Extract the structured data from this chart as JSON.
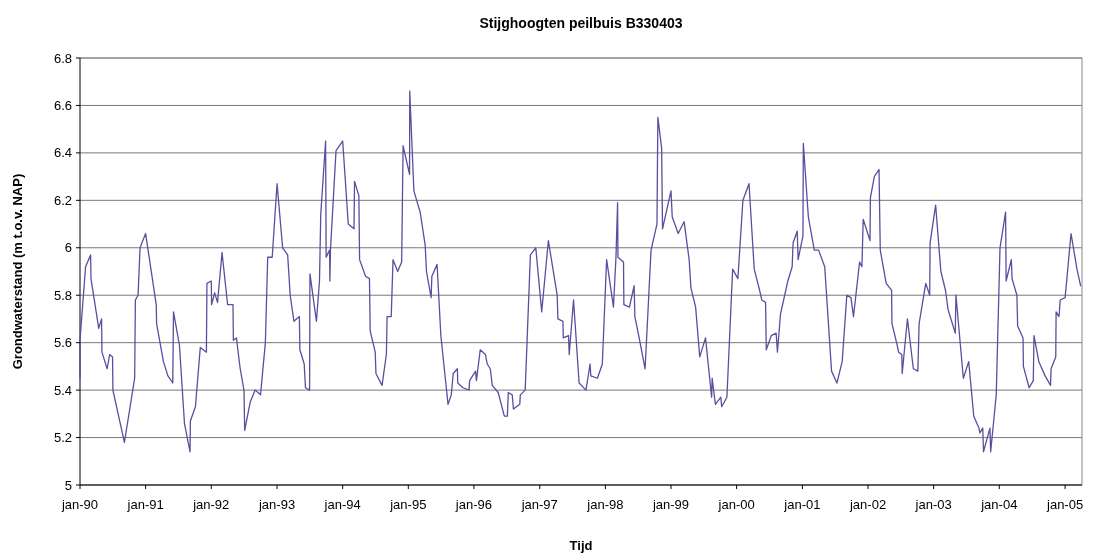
{
  "chart_data": {
    "type": "line",
    "title": "Stijghoogten peilbuis B330403",
    "xlabel": "Tijd",
    "ylabel": "Grondwaterstand (m t.o.v. NAP)",
    "xlim": [
      "1990-01-01",
      "2005-04-05"
    ],
    "ylim": [
      5,
      6.8
    ],
    "xticks": [
      {
        "value": "1990-01-01",
        "label": "jan-90"
      },
      {
        "value": "1991-01-01",
        "label": "jan-91"
      },
      {
        "value": "1992-01-01",
        "label": "jan-92"
      },
      {
        "value": "1993-01-01",
        "label": "jan-93"
      },
      {
        "value": "1994-01-01",
        "label": "jan-94"
      },
      {
        "value": "1995-01-01",
        "label": "jan-95"
      },
      {
        "value": "1996-01-01",
        "label": "jan-96"
      },
      {
        "value": "1997-01-01",
        "label": "jan-97"
      },
      {
        "value": "1998-01-01",
        "label": "jan-98"
      },
      {
        "value": "1999-01-01",
        "label": "jan-99"
      },
      {
        "value": "2000-01-01",
        "label": "jan-00"
      },
      {
        "value": "2001-01-01",
        "label": "jan-01"
      },
      {
        "value": "2002-01-01",
        "label": "jan-02"
      },
      {
        "value": "2003-01-01",
        "label": "jan-03"
      },
      {
        "value": "2004-01-01",
        "label": "jan-04"
      },
      {
        "value": "2005-01-01",
        "label": "jan-05"
      }
    ],
    "yticks": [
      5,
      5.2,
      5.4,
      5.6,
      5.8,
      6,
      6.2,
      6.4,
      6.6,
      6.8
    ],
    "grid": "y",
    "marker": "none",
    "line_style": "solid",
    "x": [
      "1990-01-01",
      "1990-01-01",
      "1990-02-01",
      "1990-03-01",
      "1990-03-03",
      "1990-04-01",
      "1990-04-15",
      "1990-05-01",
      "1990-05-03",
      "1990-06-01",
      "1990-06-15",
      "1990-07-01",
      "1990-07-03",
      "1990-09-05",
      "1990-11-01",
      "1990-11-05",
      "1990-11-20",
      "1990-12-01",
      "1991-01-01",
      "1991-03-01",
      "1991-03-03",
      "1991-04-10",
      "1991-05-05",
      "1991-06-01",
      "1991-06-05",
      "1991-07-08",
      "1991-08-05",
      "1991-09-05",
      "1991-09-07",
      "1991-10-05",
      "1991-11-01",
      "1991-12-05",
      "1991-12-08",
      "1992-01-01",
      "1992-01-03",
      "1992-01-20",
      "1992-02-05",
      "1992-03-01",
      "1992-04-01",
      "1992-05-01",
      "1992-05-03",
      "1992-05-20",
      "1992-06-10",
      "1992-07-01",
      "1992-07-05",
      "1992-08-05",
      "1992-09-01",
      "1992-10-01",
      "1992-10-28",
      "1992-11-10",
      "1992-12-05",
      "1993-01-01",
      "1993-02-01",
      "1993-03-01",
      "1993-03-15",
      "1993-04-05",
      "1993-05-05",
      "1993-05-08",
      "1993-06-01",
      "1993-06-08",
      "1993-07-01",
      "1993-07-03",
      "1993-08-08",
      "1993-08-25",
      "1993-09-01",
      "1993-09-28",
      "1993-10-01",
      "1993-10-20",
      "1993-10-22",
      "1993-10-25",
      "1993-11-25",
      "1994-01-01",
      "1994-02-01",
      "1994-03-05",
      "1994-03-08",
      "1994-04-01",
      "1994-04-05",
      "1994-05-08",
      "1994-05-30",
      "1994-06-03",
      "1994-07-01",
      "1994-07-05",
      "1994-08-08",
      "1994-09-01",
      "1994-09-05",
      "1994-09-28",
      "1994-10-08",
      "1994-11-03",
      "1994-11-25",
      "1994-12-03",
      "1995-01-08",
      "1995-01-09",
      "1995-02-01",
      "1995-03-08",
      "1995-04-05",
      "1995-04-12",
      "1995-05-08",
      "1995-05-12",
      "1995-06-10",
      "1995-07-01",
      "1995-08-10",
      "1995-08-28",
      "1995-09-08",
      "1995-10-01",
      "1995-10-03",
      "1995-11-01",
      "1995-12-05",
      "1995-12-08",
      "1996-01-10",
      "1996-01-15",
      "1996-02-05",
      "1996-03-05",
      "1996-03-15",
      "1996-04-01",
      "1996-04-12",
      "1996-05-15",
      "1996-06-18",
      "1996-07-05",
      "1996-07-10",
      "1996-08-01",
      "1996-08-08",
      "1996-09-12",
      "1996-09-15",
      "1996-10-12",
      "1996-11-10",
      "1996-12-10",
      "1997-01-12",
      "1997-02-18",
      "1997-04-08",
      "1997-04-12",
      "1997-05-10",
      "1997-05-12",
      "1997-06-10",
      "1997-06-14",
      "1997-07-08",
      "1997-08-08",
      "1997-09-15",
      "1997-10-08",
      "1997-10-12",
      "1997-11-18",
      "1997-12-15",
      "1998-01-08",
      "1998-02-15",
      "1998-03-01",
      "1998-03-10",
      "1998-03-12",
      "1998-04-12",
      "1998-04-14",
      "1998-05-15",
      "1998-06-10",
      "1998-06-14",
      "1998-07-08",
      "1998-08-10",
      "1998-09-12",
      "1998-10-15",
      "1998-10-20",
      "1998-11-10",
      "1998-11-15",
      "1999-01-01",
      "1999-01-08",
      "1999-02-10",
      "1999-03-15",
      "1999-04-12",
      "1999-04-22",
      "1999-05-18",
      "1999-06-10",
      "1999-07-12",
      "1999-08-15",
      "1999-08-18",
      "1999-09-05",
      "1999-10-05",
      "1999-10-10",
      "1999-11-08",
      "1999-12-10",
      "2000-01-08",
      "2000-02-05",
      "2000-03-10",
      "2000-04-08",
      "2000-05-08",
      "2000-05-20",
      "2000-06-10",
      "2000-06-14",
      "2000-07-12",
      "2000-08-08",
      "2000-08-15",
      "2000-09-01",
      "2000-10-12",
      "2000-11-05",
      "2000-11-10",
      "2000-12-03",
      "2000-12-08",
      "2001-01-04",
      "2001-01-06",
      "2001-02-03",
      "2001-03-08",
      "2001-04-01",
      "2001-05-05",
      "2001-06-12",
      "2001-07-12",
      "2001-08-10",
      "2001-09-05",
      "2001-09-28",
      "2001-10-12",
      "2001-11-15",
      "2001-11-28",
      "2001-12-05",
      "2002-01-12",
      "2002-01-14",
      "2002-02-05",
      "2002-03-03",
      "2002-03-10",
      "2002-04-12",
      "2002-05-12",
      "2002-05-14",
      "2002-06-12",
      "2002-06-20",
      "2002-07-08",
      "2002-07-10",
      "2002-08-08",
      "2002-09-10",
      "2002-10-05",
      "2002-10-12",
      "2002-11-18",
      "2002-12-10",
      "2002-12-12",
      "2003-01-12",
      "2003-02-10",
      "2003-03-08",
      "2003-03-22",
      "2003-05-01",
      "2003-05-05",
      "2003-06-15",
      "2003-07-15",
      "2003-08-12",
      "2003-09-10",
      "2003-09-15",
      "2003-10-01",
      "2003-10-05",
      "2003-11-10",
      "2003-11-14",
      "2003-12-15",
      "2004-01-05",
      "2004-02-05",
      "2004-02-08",
      "2004-03-08",
      "2004-03-12",
      "2004-04-08",
      "2004-04-12",
      "2004-05-12",
      "2004-05-14",
      "2004-06-15",
      "2004-07-08",
      "2004-07-12",
      "2004-08-08",
      "2004-09-12",
      "2004-10-12",
      "2004-10-15",
      "2004-11-10",
      "2004-11-12",
      "2004-11-28",
      "2004-12-05",
      "2005-01-01",
      "2005-02-03",
      "2005-03-08",
      "2005-03-28"
    ],
    "series": [
      {
        "color": "#5a4f9e",
        "values": [
          5.45,
          5.61,
          5.92,
          5.97,
          5.87,
          5.73,
          5.66,
          5.7,
          5.56,
          5.49,
          5.55,
          5.54,
          5.4,
          5.18,
          5.45,
          5.78,
          5.8,
          6.0,
          6.06,
          5.76,
          5.68,
          5.52,
          5.46,
          5.43,
          5.73,
          5.59,
          5.26,
          5.14,
          5.27,
          5.33,
          5.58,
          5.56,
          5.85,
          5.86,
          5.76,
          5.81,
          5.77,
          5.98,
          5.76,
          5.76,
          5.61,
          5.62,
          5.49,
          5.4,
          5.23,
          5.35,
          5.4,
          5.38,
          5.6,
          5.96,
          5.96,
          6.27,
          6.0,
          5.97,
          5.8,
          5.69,
          5.71,
          5.57,
          5.51,
          5.41,
          5.4,
          5.89,
          5.69,
          5.86,
          6.14,
          6.45,
          5.96,
          5.99,
          5.86,
          5.99,
          6.41,
          6.45,
          6.1,
          6.08,
          6.28,
          6.22,
          5.95,
          5.88,
          5.87,
          5.65,
          5.56,
          5.47,
          5.42,
          5.55,
          5.71,
          5.71,
          5.95,
          5.9,
          5.94,
          6.43,
          6.31,
          6.66,
          6.24,
          6.15,
          6.01,
          5.9,
          5.79,
          5.88,
          5.93,
          5.63,
          5.34,
          5.38,
          5.47,
          5.49,
          5.43,
          5.41,
          5.4,
          5.44,
          5.48,
          5.44,
          5.57,
          5.55,
          5.51,
          5.49,
          5.42,
          5.39,
          5.29,
          5.29,
          5.39,
          5.38,
          5.32,
          5.34,
          5.38,
          5.4,
          5.97,
          6.0,
          5.73,
          6.03,
          5.8,
          5.7,
          5.69,
          5.62,
          5.63,
          5.55,
          5.78,
          5.43,
          5.4,
          5.51,
          5.46,
          5.45,
          5.51,
          5.95,
          5.75,
          5.96,
          6.19,
          5.96,
          5.94,
          5.76,
          5.75,
          5.84,
          5.71,
          5.62,
          5.49,
          5.99,
          6.1,
          6.55,
          6.42,
          6.08,
          6.24,
          6.13,
          6.06,
          6.11,
          5.95,
          5.83,
          5.75,
          5.54,
          5.62,
          5.37,
          5.45,
          5.34,
          5.37,
          5.33,
          5.37,
          5.91,
          5.87,
          6.2,
          6.27,
          5.91,
          5.82,
          5.78,
          5.77,
          5.57,
          5.63,
          5.64,
          5.56,
          5.72,
          5.86,
          5.92,
          6.02,
          6.07,
          5.95,
          6.05,
          6.44,
          6.13,
          5.99,
          5.99,
          5.92,
          5.48,
          5.43,
          5.52,
          5.8,
          5.79,
          5.71,
          5.94,
          5.92,
          6.12,
          6.03,
          6.21,
          6.3,
          6.33,
          5.99,
          5.85,
          5.82,
          5.68,
          5.59,
          5.56,
          5.55,
          5.47,
          5.7,
          5.49,
          5.48,
          5.68,
          5.85,
          5.8,
          6.02,
          6.18,
          5.9,
          5.82,
          5.74,
          5.64,
          5.8,
          5.45,
          5.52,
          5.29,
          5.24,
          5.22,
          5.24,
          5.14,
          5.24,
          5.14,
          5.38,
          6.0,
          6.15,
          5.86,
          5.95,
          5.87,
          5.8,
          5.67,
          5.62,
          5.5,
          5.41,
          5.44,
          5.63,
          5.52,
          5.46,
          5.42,
          5.49,
          5.54,
          5.73,
          5.71,
          5.78,
          5.79,
          6.06,
          5.91,
          5.84
        ]
      }
    ]
  }
}
